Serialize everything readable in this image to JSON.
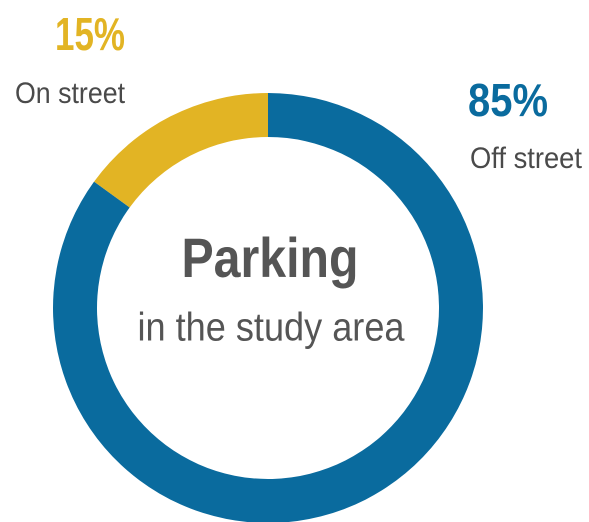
{
  "chart_data": {
    "type": "donut",
    "title": "Parking",
    "subtitle": "in the study area",
    "categories": [
      "On street",
      "Off street"
    ],
    "values": [
      15,
      85
    ],
    "value_labels": [
      "15%",
      "85%"
    ],
    "colors": [
      "#e2b424",
      "#0a6b9e"
    ]
  }
}
